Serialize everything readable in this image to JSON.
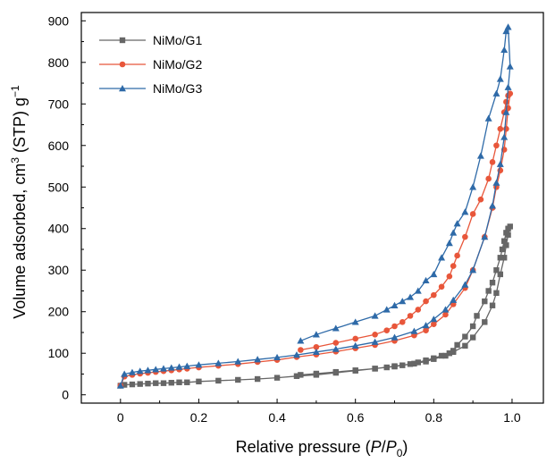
{
  "chart_data": {
    "type": "line",
    "xlabel": {
      "main": "Relative pressure (",
      "p": "P",
      "slash": "/",
      "p0": "P",
      "sub": "0",
      "close": ")"
    },
    "ylabel": {
      "main": "Volume adsorbed, cm",
      "sup3": "3",
      "mid": " (STP) g",
      "supneg": "−1"
    },
    "xlim": [
      -0.1,
      1.08
    ],
    "ylim": [
      -20,
      920
    ],
    "xticks": [
      0.0,
      0.2,
      0.4,
      0.6,
      0.8,
      1.0
    ],
    "xtick_labels": [
      "0",
      "0.2",
      "0.4",
      "0.6",
      "0.8",
      "1.0"
    ],
    "yticks": [
      0,
      100,
      200,
      300,
      400,
      500,
      600,
      700,
      800,
      900
    ],
    "ytick_labels": [
      "0",
      "100",
      "200",
      "300",
      "400",
      "500",
      "600",
      "700",
      "800",
      "900"
    ],
    "legend_position": "top-left",
    "series": [
      {
        "name": "NiMo/G1",
        "color": "#666666",
        "marker": "square",
        "x": [
          0.0,
          0.01,
          0.03,
          0.05,
          0.07,
          0.09,
          0.11,
          0.13,
          0.15,
          0.17,
          0.2,
          0.25,
          0.3,
          0.35,
          0.4,
          0.45,
          0.5,
          0.55,
          0.6,
          0.65,
          0.7,
          0.75,
          0.78,
          0.8,
          0.83,
          0.85,
          0.88,
          0.9,
          0.93,
          0.95,
          0.96,
          0.97,
          0.98,
          0.985,
          0.99,
          0.995,
          0.99,
          0.985,
          0.98,
          0.975,
          0.97,
          0.96,
          0.95,
          0.94,
          0.93,
          0.91,
          0.9,
          0.88,
          0.86,
          0.85,
          0.84,
          0.82,
          0.8,
          0.78,
          0.76,
          0.74,
          0.72,
          0.7,
          0.68,
          0.65,
          0.6,
          0.55,
          0.5,
          0.46
        ],
        "y": [
          22,
          24,
          25,
          26,
          27,
          28,
          28,
          29,
          30,
          30,
          32,
          34,
          36,
          38,
          41,
          45,
          48,
          53,
          58,
          63,
          69,
          75,
          80,
          86,
          94,
          103,
          118,
          138,
          175,
          215,
          245,
          290,
          330,
          360,
          385,
          405,
          400,
          390,
          370,
          350,
          330,
          300,
          270,
          250,
          225,
          190,
          165,
          140,
          120,
          106,
          100,
          94,
          88,
          83,
          78,
          74,
          71,
          68,
          66,
          63,
          59,
          55,
          51,
          48
        ]
      },
      {
        "name": "NiMo/G2",
        "color": "#e8563a",
        "marker": "circle",
        "x": [
          0.0,
          0.01,
          0.03,
          0.05,
          0.07,
          0.09,
          0.11,
          0.13,
          0.15,
          0.17,
          0.2,
          0.25,
          0.3,
          0.35,
          0.4,
          0.45,
          0.5,
          0.55,
          0.6,
          0.65,
          0.7,
          0.75,
          0.78,
          0.8,
          0.83,
          0.85,
          0.88,
          0.9,
          0.93,
          0.95,
          0.96,
          0.97,
          0.98,
          0.985,
          0.99,
          0.995,
          0.99,
          0.985,
          0.98,
          0.97,
          0.96,
          0.95,
          0.94,
          0.92,
          0.9,
          0.88,
          0.86,
          0.85,
          0.84,
          0.82,
          0.8,
          0.78,
          0.76,
          0.74,
          0.72,
          0.7,
          0.68,
          0.65,
          0.6,
          0.55,
          0.5,
          0.46
        ],
        "y": [
          22,
          44,
          48,
          51,
          53,
          55,
          57,
          59,
          61,
          63,
          66,
          70,
          74,
          79,
          84,
          91,
          97,
          104,
          112,
          120,
          130,
          143,
          155,
          170,
          193,
          218,
          257,
          300,
          380,
          450,
          500,
          540,
          590,
          640,
          690,
          725,
          720,
          705,
          680,
          640,
          600,
          560,
          520,
          470,
          435,
          380,
          335,
          310,
          285,
          260,
          240,
          225,
          205,
          190,
          175,
          165,
          155,
          145,
          135,
          125,
          115,
          108
        ]
      },
      {
        "name": "NiMo/G3",
        "color": "#2e6aa8",
        "marker": "triangle",
        "x": [
          0.0,
          0.01,
          0.03,
          0.05,
          0.07,
          0.09,
          0.11,
          0.13,
          0.15,
          0.17,
          0.2,
          0.25,
          0.3,
          0.35,
          0.4,
          0.45,
          0.5,
          0.55,
          0.6,
          0.65,
          0.7,
          0.75,
          0.78,
          0.8,
          0.83,
          0.85,
          0.88,
          0.9,
          0.93,
          0.95,
          0.96,
          0.97,
          0.98,
          0.985,
          0.99,
          0.995,
          0.99,
          0.985,
          0.98,
          0.97,
          0.96,
          0.94,
          0.92,
          0.9,
          0.88,
          0.86,
          0.85,
          0.84,
          0.82,
          0.8,
          0.78,
          0.76,
          0.74,
          0.72,
          0.7,
          0.68,
          0.65,
          0.6,
          0.55,
          0.5,
          0.46
        ],
        "y": [
          22,
          50,
          54,
          57,
          59,
          61,
          63,
          65,
          67,
          69,
          72,
          76,
          80,
          85,
          90,
          96,
          103,
          110,
          118,
          127,
          138,
          153,
          167,
          182,
          205,
          228,
          265,
          300,
          380,
          455,
          510,
          555,
          620,
          680,
          740,
          790,
          885,
          875,
          830,
          760,
          725,
          665,
          575,
          500,
          440,
          412,
          390,
          365,
          330,
          290,
          275,
          250,
          235,
          225,
          215,
          205,
          190,
          175,
          160,
          145,
          130
        ]
      }
    ]
  }
}
